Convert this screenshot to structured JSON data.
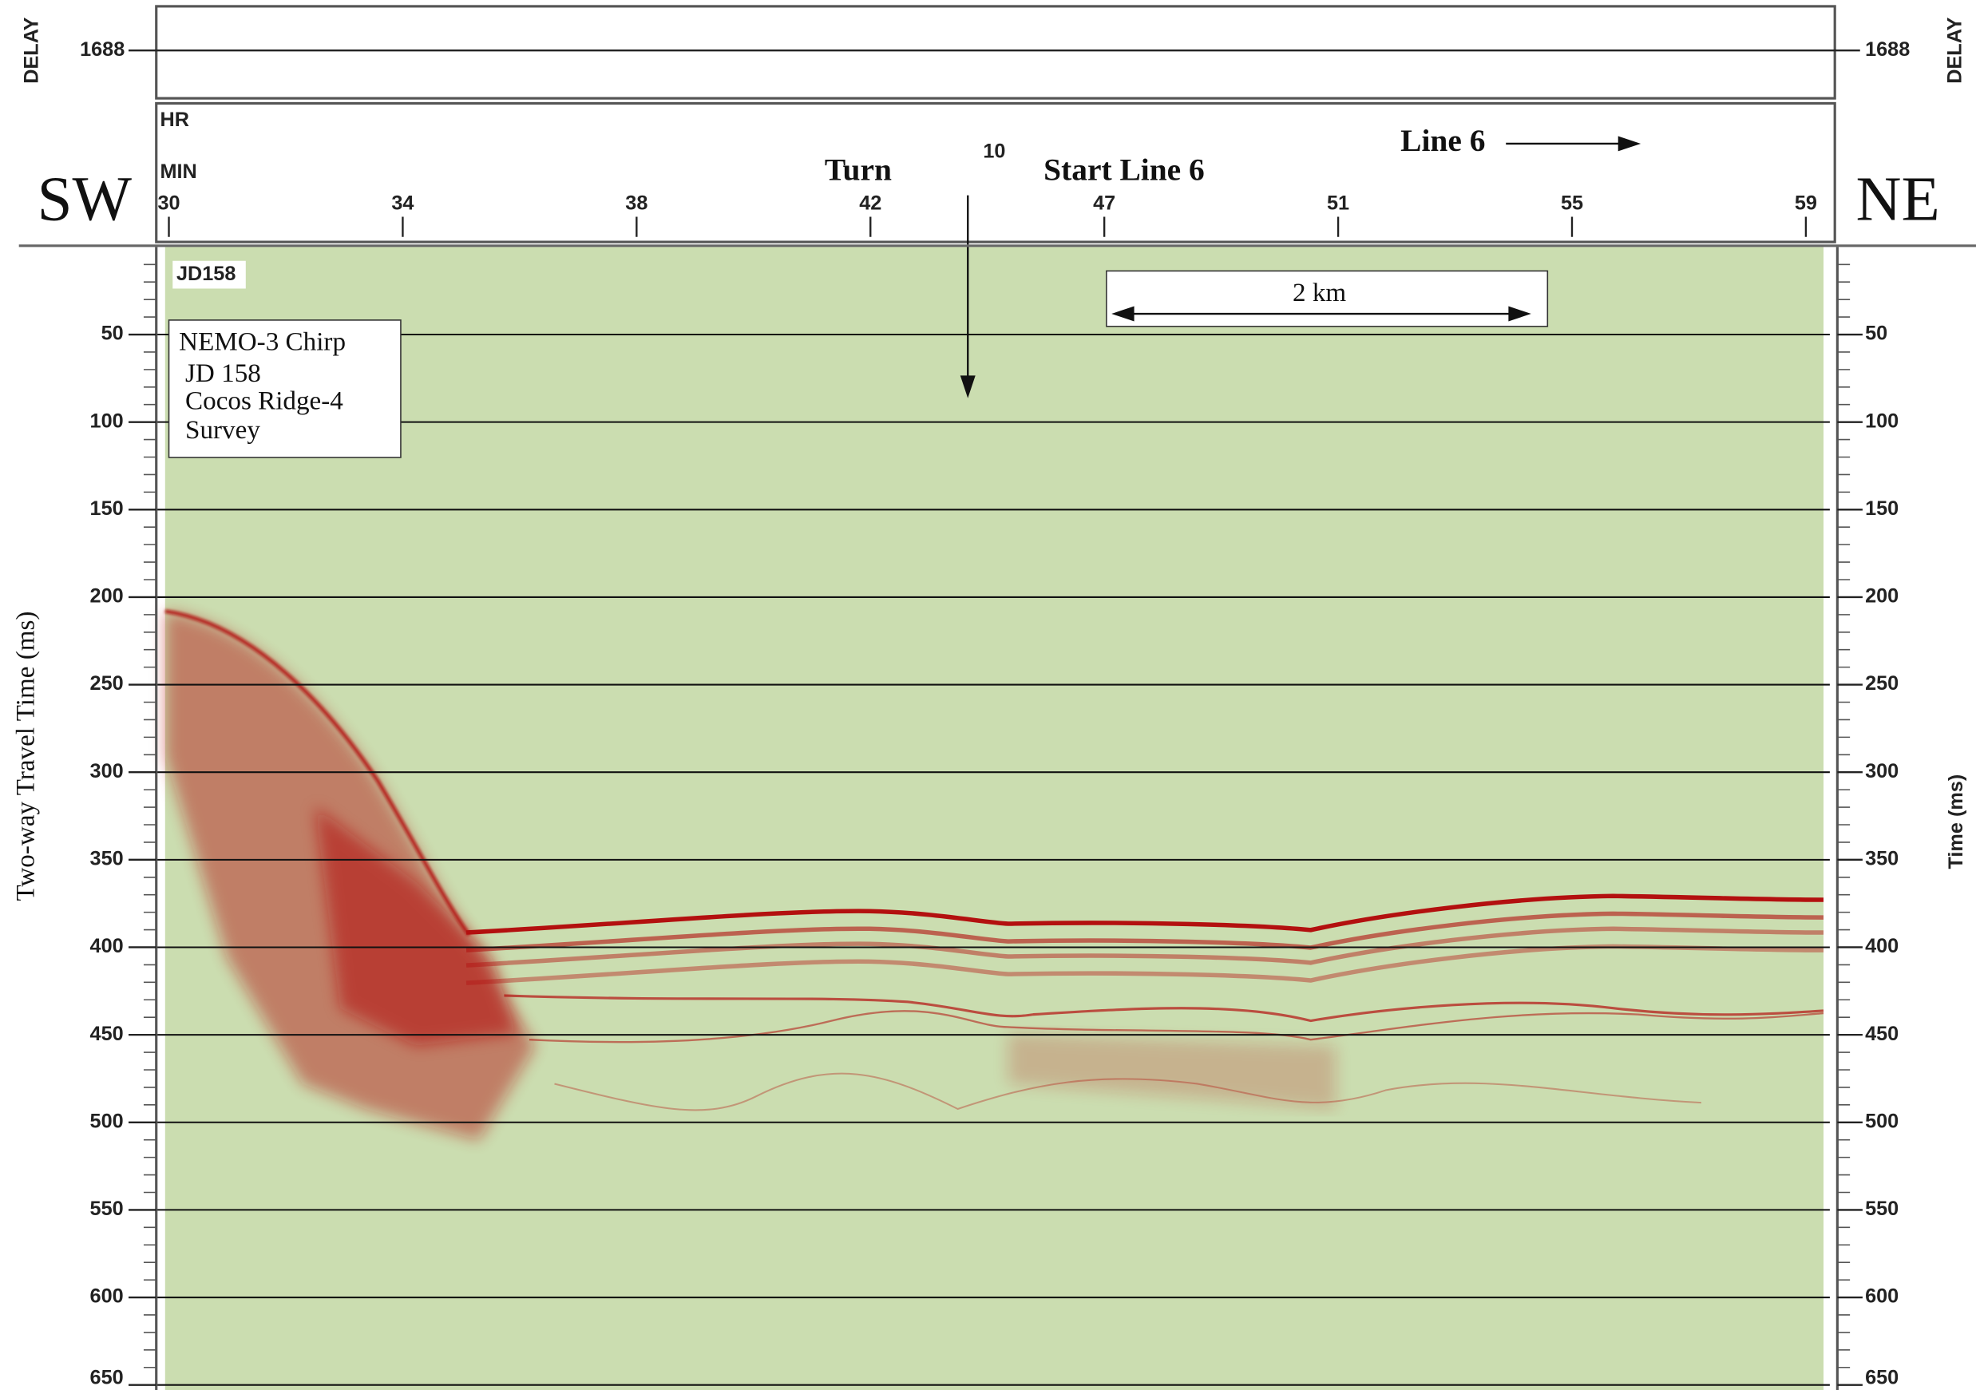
{
  "chart_data": {
    "type": "seismic",
    "delay": {
      "label": "DELAY",
      "value": 1688
    },
    "hr_label": "HR",
    "min_label": "MIN",
    "hour_mark": "10",
    "categories": [
      "30",
      "34",
      "38",
      "42",
      "47",
      "51",
      "55",
      "59"
    ],
    "annotations": {
      "turn": "Turn",
      "start": "Start Line 6",
      "line": "Line 6",
      "left_dir": "SW",
      "right_dir": "NE",
      "day": "JD158",
      "scale": "2 km"
    },
    "info_box": [
      "NEMO-3 Chirp",
      "JD 158",
      "Cocos Ridge-4",
      "Survey"
    ],
    "y_label": "Two-way Travel Time (ms)",
    "y2_label": "Time (ms)",
    "ylim": [
      0,
      650
    ],
    "yticks": [
      50,
      100,
      150,
      200,
      250,
      300,
      350,
      400,
      450,
      500,
      550,
      600,
      650
    ],
    "y2lim": [
      0,
      650
    ],
    "y2ticks": [
      50,
      100,
      150,
      200,
      250,
      300,
      350,
      400,
      450,
      500,
      550,
      600,
      650
    ],
    "grid": true,
    "background_color": "#cbddb0",
    "reflector_color": "#b3100f"
  }
}
